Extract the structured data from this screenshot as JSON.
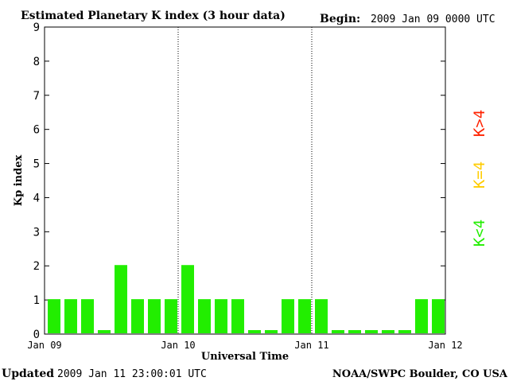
{
  "header": {
    "title": "Estimated Planetary K index (3 hour data)",
    "begin_label": "Begin:",
    "begin_value": "2009 Jan 09 0000 UTC"
  },
  "footer": {
    "updated_label": "Updated",
    "updated_value": "2009 Jan 11 23:00:01 UTC",
    "source": "NOAA/SWPC Boulder, CO USA"
  },
  "legend": {
    "items": [
      {
        "text": "K>4",
        "color": "#ff2200"
      },
      {
        "text": "K=4",
        "color": "#ffcc00"
      },
      {
        "text": "K<4",
        "color": "#22ee00"
      }
    ]
  },
  "chart_data": {
    "type": "bar",
    "title": "Estimated Planetary K index (3 hour data)",
    "xlabel": "Universal Time",
    "ylabel": "Kp index",
    "ylim": [
      0,
      9
    ],
    "yticks": [
      "0",
      "1",
      "2",
      "3",
      "4",
      "5",
      "6",
      "7",
      "8",
      "9"
    ],
    "xticks": [
      "Jan 09",
      "Jan 10",
      "Jan 11",
      "Jan 12"
    ],
    "day_divider_ticks": [
      "Jan 10",
      "Jan 11"
    ],
    "interval_hours": 3,
    "categories": [
      "Jan 09 00",
      "Jan 09 03",
      "Jan 09 06",
      "Jan 09 09",
      "Jan 09 12",
      "Jan 09 15",
      "Jan 09 18",
      "Jan 09 21",
      "Jan 10 00",
      "Jan 10 03",
      "Jan 10 06",
      "Jan 10 09",
      "Jan 10 12",
      "Jan 10 15",
      "Jan 10 18",
      "Jan 10 21",
      "Jan 11 00",
      "Jan 11 03",
      "Jan 11 06",
      "Jan 11 09",
      "Jan 11 12",
      "Jan 11 15",
      "Jan 11 18",
      "Jan 11 21"
    ],
    "values": [
      1,
      1,
      1,
      0,
      2,
      1,
      1,
      1,
      2,
      1,
      1,
      1,
      0,
      0,
      1,
      1,
      1,
      0,
      0,
      0,
      0,
      0,
      1,
      1
    ],
    "bar_color": "#22ee00",
    "grid": false
  }
}
